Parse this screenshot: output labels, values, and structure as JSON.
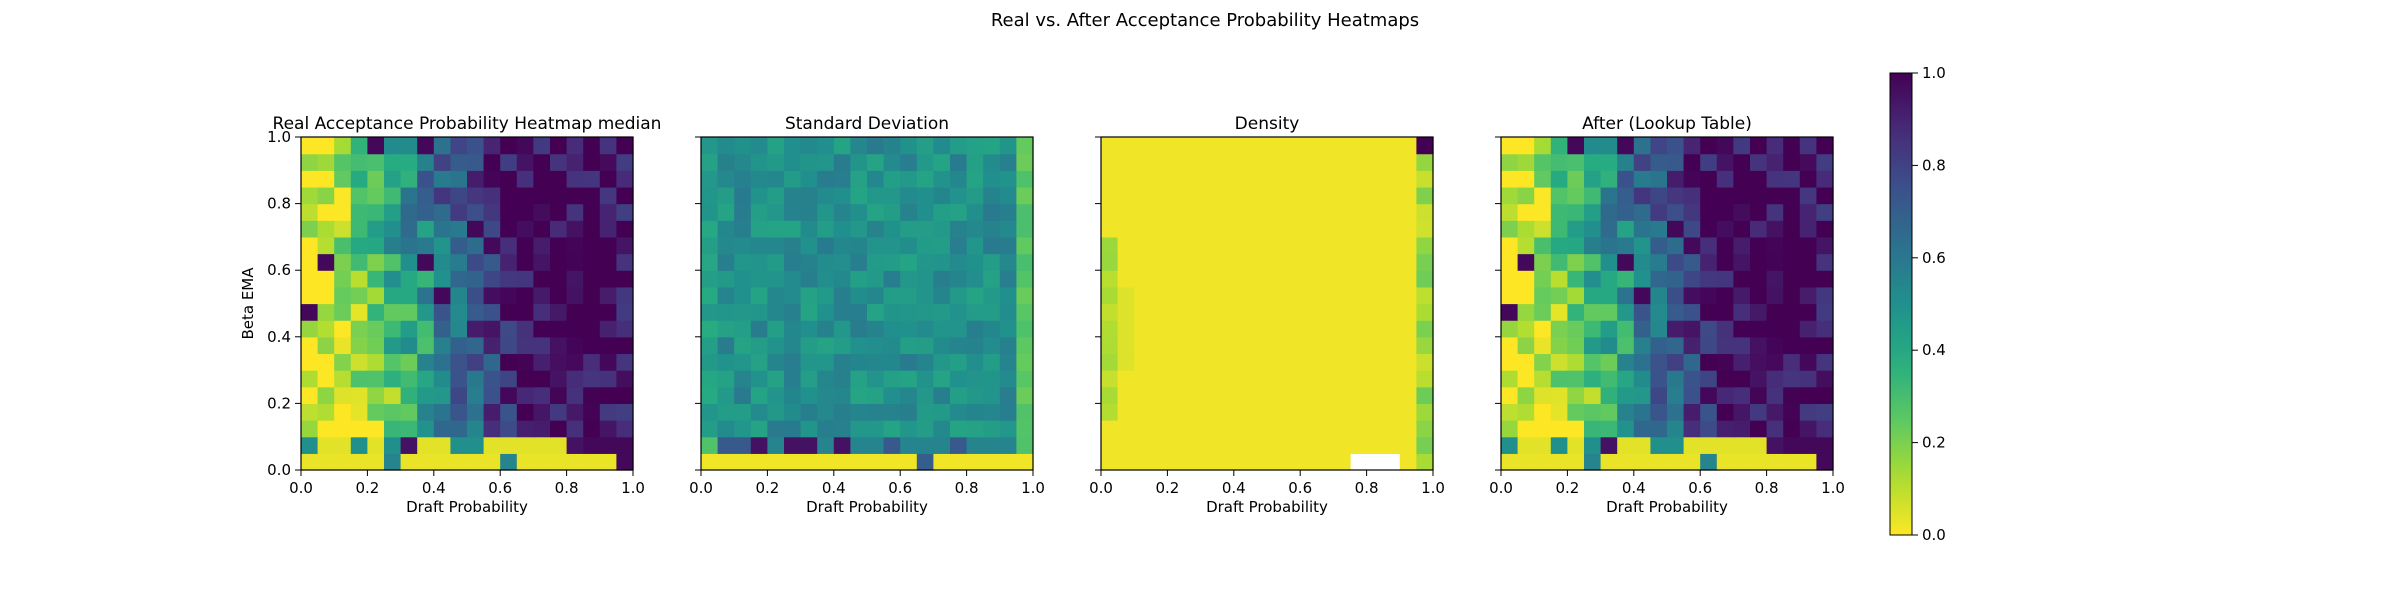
{
  "figure": {
    "suptitle": "Real vs. After Acceptance Probability Heatmaps"
  },
  "colorbar": {
    "colormap": "viridis_r",
    "min": 0.0,
    "max": 1.0,
    "ticks": [
      "0.0",
      "0.2",
      "0.4",
      "0.6",
      "0.8",
      "1.0"
    ]
  },
  "chart_data": [
    {
      "type": "heatmap",
      "title": "Real Acceptance Probability Heatmap median",
      "xlabel": "Draft Probability",
      "ylabel": "Beta EMA",
      "xlim": [
        0,
        1
      ],
      "ylim": [
        0,
        1
      ],
      "xticks": [
        "0.0",
        "0.2",
        "0.4",
        "0.6",
        "0.8",
        "1.0"
      ],
      "yticks": [
        "0.0",
        "0.2",
        "0.4",
        "0.6",
        "0.8",
        "1.0"
      ],
      "show_ytick_labels": true,
      "grid_size": [
        20,
        20
      ],
      "pattern": "acceptance",
      "note_values": "approximate per-cell values (estimated visually), rows ordered from y=0 upward"
    },
    {
      "type": "heatmap",
      "title": "Standard Deviation",
      "xlabel": "Draft Probability",
      "ylabel": "",
      "xlim": [
        0,
        1
      ],
      "ylim": [
        0,
        1
      ],
      "xticks": [
        "0.0",
        "0.2",
        "0.4",
        "0.6",
        "0.8",
        "1.0"
      ],
      "yticks": [
        "0.0",
        "0.2",
        "0.4",
        "0.6",
        "0.8",
        "1.0"
      ],
      "show_ytick_labels": false,
      "grid_size": [
        20,
        20
      ],
      "pattern": "stddev"
    },
    {
      "type": "heatmap",
      "title": "Density",
      "xlabel": "Draft Probability",
      "ylabel": "",
      "xlim": [
        0,
        1
      ],
      "ylim": [
        0,
        1
      ],
      "xticks": [
        "0.0",
        "0.2",
        "0.4",
        "0.6",
        "0.8",
        "1.0"
      ],
      "yticks": [
        "0.0",
        "0.2",
        "0.4",
        "0.6",
        "0.8",
        "1.0"
      ],
      "show_ytick_labels": false,
      "grid_size": [
        20,
        20
      ],
      "pattern": "density"
    },
    {
      "type": "heatmap",
      "title": "After (Lookup Table)",
      "xlabel": "Draft Probability",
      "ylabel": "",
      "xlim": [
        0,
        1
      ],
      "ylim": [
        0,
        1
      ],
      "xticks": [
        "0.0",
        "0.2",
        "0.4",
        "0.6",
        "0.8",
        "1.0"
      ],
      "yticks": [
        "0.0",
        "0.2",
        "0.4",
        "0.6",
        "0.8",
        "1.0"
      ],
      "show_ytick_labels": false,
      "grid_size": [
        20,
        20
      ],
      "pattern": "acceptance"
    }
  ]
}
